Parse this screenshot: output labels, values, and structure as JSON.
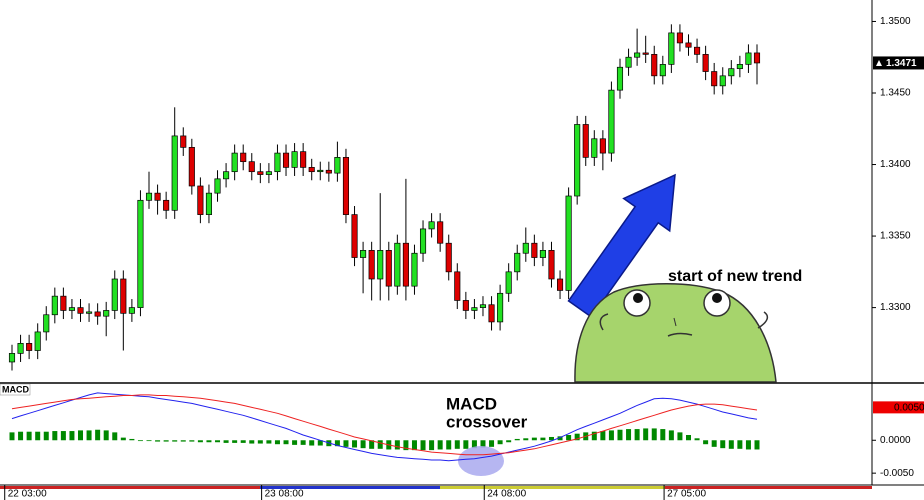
{
  "chart_data": [
    {
      "type": "candlestick",
      "open": [
        1.3262,
        1.3268,
        1.3275,
        1.327,
        1.3283,
        1.3295,
        1.3308,
        1.3298,
        1.33,
        1.3296,
        1.3297,
        1.3294,
        1.3298,
        1.332,
        1.3296,
        1.33,
        1.3375,
        1.338,
        1.3375,
        1.3368,
        1.342,
        1.3412,
        1.3385,
        1.3365,
        1.338,
        1.339,
        1.3395,
        1.3408,
        1.3402,
        1.3395,
        1.3393,
        1.3395,
        1.3408,
        1.3398,
        1.3409,
        1.3398,
        1.3395,
        1.3396,
        1.3394,
        1.3405,
        1.3365,
        1.3335,
        1.334,
        1.332,
        1.334,
        1.3315,
        1.3345,
        1.3315,
        1.3338,
        1.3355,
        1.336,
        1.3345,
        1.3325,
        1.3305,
        1.3298,
        1.33,
        1.3302,
        1.329,
        1.331,
        1.3325,
        1.3338,
        1.3345,
        1.3335,
        1.334,
        1.332,
        1.3312,
        1.3378,
        1.3428,
        1.3405,
        1.3418,
        1.3408,
        1.3452,
        1.3468,
        1.3475,
        1.3478,
        1.3477,
        1.3462,
        1.347,
        1.3492,
        1.3485,
        1.3482,
        1.3477,
        1.3465,
        1.3455,
        1.3462,
        1.3467,
        1.347,
        1.3478
      ],
      "high": [
        1.3274,
        1.3281,
        1.3281,
        1.3289,
        1.3301,
        1.3314,
        1.3314,
        1.3306,
        1.3306,
        1.3303,
        1.3303,
        1.3304,
        1.3326,
        1.3326,
        1.3306,
        1.3382,
        1.3395,
        1.3386,
        1.3381,
        1.344,
        1.3426,
        1.3418,
        1.3391,
        1.3386,
        1.3396,
        1.3401,
        1.3414,
        1.3414,
        1.3408,
        1.3401,
        1.3401,
        1.3414,
        1.3414,
        1.3415,
        1.3415,
        1.3404,
        1.3402,
        1.3402,
        1.3416,
        1.3411,
        1.3371,
        1.3346,
        1.3346,
        1.338,
        1.3346,
        1.3351,
        1.339,
        1.3344,
        1.3361,
        1.3366,
        1.3366,
        1.3351,
        1.3331,
        1.3311,
        1.3306,
        1.3308,
        1.3308,
        1.3316,
        1.3331,
        1.3344,
        1.3356,
        1.3351,
        1.3346,
        1.3346,
        1.3326,
        1.3384,
        1.3434,
        1.3434,
        1.3424,
        1.3424,
        1.3458,
        1.3474,
        1.3481,
        1.3495,
        1.349,
        1.3483,
        1.3476,
        1.3498,
        1.3498,
        1.3491,
        1.3488,
        1.3483,
        1.3471,
        1.3468,
        1.3473,
        1.3476,
        1.3484,
        1.3484
      ],
      "low": [
        1.3256,
        1.3262,
        1.3264,
        1.3264,
        1.3277,
        1.3289,
        1.3292,
        1.3292,
        1.329,
        1.329,
        1.3288,
        1.328,
        1.3292,
        1.327,
        1.329,
        1.3294,
        1.3369,
        1.3365,
        1.3362,
        1.3362,
        1.3406,
        1.3379,
        1.3359,
        1.3359,
        1.3374,
        1.3384,
        1.3389,
        1.3396,
        1.3389,
        1.3387,
        1.3387,
        1.3389,
        1.3392,
        1.3392,
        1.3392,
        1.3389,
        1.3389,
        1.3388,
        1.3388,
        1.3359,
        1.3329,
        1.331,
        1.3305,
        1.3305,
        1.3305,
        1.3309,
        1.3305,
        1.3309,
        1.3332,
        1.3349,
        1.3339,
        1.3319,
        1.3299,
        1.3292,
        1.3292,
        1.3294,
        1.3284,
        1.3284,
        1.3304,
        1.3319,
        1.3332,
        1.3329,
        1.3329,
        1.3314,
        1.3306,
        1.3306,
        1.3372,
        1.3399,
        1.3399,
        1.3396,
        1.3402,
        1.3446,
        1.3462,
        1.3469,
        1.3471,
        1.3456,
        1.3456,
        1.3464,
        1.3479,
        1.3476,
        1.3471,
        1.3459,
        1.3449,
        1.3449,
        1.3456,
        1.3461,
        1.3464,
        1.3456
      ],
      "close": [
        1.3268,
        1.3275,
        1.327,
        1.3283,
        1.3295,
        1.3308,
        1.3298,
        1.33,
        1.3296,
        1.3297,
        1.3294,
        1.3298,
        1.332,
        1.3296,
        1.33,
        1.3375,
        1.338,
        1.3375,
        1.3368,
        1.342,
        1.3412,
        1.3385,
        1.3365,
        1.338,
        1.339,
        1.3395,
        1.3408,
        1.3402,
        1.3395,
        1.3393,
        1.3395,
        1.3408,
        1.3398,
        1.3409,
        1.3398,
        1.3395,
        1.3396,
        1.3394,
        1.3405,
        1.3365,
        1.3335,
        1.334,
        1.332,
        1.334,
        1.3315,
        1.3345,
        1.3315,
        1.3338,
        1.3355,
        1.336,
        1.3345,
        1.3325,
        1.3305,
        1.3298,
        1.33,
        1.3302,
        1.329,
        1.331,
        1.3325,
        1.3338,
        1.3345,
        1.3335,
        1.334,
        1.332,
        1.3312,
        1.3378,
        1.3428,
        1.3405,
        1.3418,
        1.3408,
        1.3452,
        1.3468,
        1.3475,
        1.3478,
        1.3477,
        1.3462,
        1.347,
        1.3492,
        1.3485,
        1.3482,
        1.3477,
        1.3465,
        1.3455,
        1.3462,
        1.3467,
        1.347,
        1.3478,
        1.3471
      ],
      "up_color": "#22e022",
      "down_color": "#dd0000",
      "ylim": [
        1.3248,
        1.3515
      ],
      "yticks": [
        {
          "value": 1.33,
          "label": "1.3300"
        },
        {
          "value": 1.335,
          "label": "1.3350"
        },
        {
          "value": 1.34,
          "label": "1.3400"
        },
        {
          "value": 1.345,
          "label": "1.3450"
        },
        {
          "value": 1.35,
          "label": "1.3500"
        }
      ],
      "xticks": [
        {
          "value": 0,
          "label": "22 03:00"
        },
        {
          "value": 30,
          "label": "23 08:00"
        },
        {
          "value": 56,
          "label": "24 08:00"
        },
        {
          "value": 77,
          "label": "27 05:00"
        }
      ],
      "annotation": "start of new trend"
    },
    {
      "type": "macd",
      "title": "MACD",
      "histogram": [
        0.0012,
        0.0013,
        0.0013,
        0.0013,
        0.0013,
        0.0014,
        0.0014,
        0.0014,
        0.0015,
        0.0015,
        0.0016,
        0.0015,
        0.0012,
        0.0004,
        0.0002,
        -0.0001,
        -0.0001,
        -0.0002,
        -0.0002,
        -0.0002,
        -0.0002,
        -0.0002,
        -0.0003,
        -0.0003,
        -0.0003,
        -0.0004,
        -0.0004,
        -0.0004,
        -0.0005,
        -0.0005,
        -0.0005,
        -0.0006,
        -0.0006,
        -0.0007,
        -0.0007,
        -0.0008,
        -0.0008,
        -0.0009,
        -0.0009,
        -0.001,
        -0.0011,
        -0.0012,
        -0.0013,
        -0.0013,
        -0.0014,
        -0.0014,
        -0.0015,
        -0.0015,
        -0.0015,
        -0.0015,
        -0.0014,
        -0.0014,
        -0.0013,
        -0.0013,
        -0.0012,
        -0.0011,
        -0.001,
        -0.0006,
        -0.0003,
        0.0002,
        0.0003,
        0.0004,
        0.0004,
        0.0005,
        0.0006,
        0.0008,
        0.001,
        0.0012,
        0.0013,
        0.0014,
        0.0015,
        0.0016,
        0.0017,
        0.0017,
        0.0018,
        0.0018,
        0.0017,
        0.0015,
        0.0012,
        0.0008,
        0.0003,
        -0.0006,
        -0.001,
        -0.0012,
        -0.0013,
        -0.0013,
        -0.0014,
        -0.0014
      ],
      "histogram_color": "#008800",
      "lines": [
        {
          "color": "#2222ee",
          "values": [
            0.0033,
            0.0037,
            0.0041,
            0.0045,
            0.0049,
            0.0053,
            0.0057,
            0.0061,
            0.0065,
            0.0069,
            0.0072,
            0.0071,
            0.007,
            0.0069,
            0.0068,
            0.0067,
            0.0066,
            0.0064,
            0.0062,
            0.006,
            0.0058,
            0.0056,
            0.0053,
            0.005,
            0.0047,
            0.0044,
            0.0041,
            0.0038,
            0.0034,
            0.003,
            0.0026,
            0.0022,
            0.0018,
            0.0013,
            0.0008,
            0.0004,
            0.0,
            -0.0004,
            -0.0008,
            -0.0011,
            -0.0014,
            -0.0017,
            -0.002,
            -0.0022,
            -0.0024,
            -0.0026,
            -0.0027,
            -0.0028,
            -0.0029,
            -0.003,
            -0.003,
            -0.0031,
            -0.003,
            -0.0029,
            -0.0028,
            -0.0026,
            -0.0024,
            -0.0021,
            -0.0018,
            -0.0015,
            -0.0012,
            -0.0009,
            -0.0005,
            -0.0001,
            0.0004,
            0.001,
            0.0016,
            0.0021,
            0.0026,
            0.0031,
            0.0036,
            0.0041,
            0.0047,
            0.0053,
            0.0058,
            0.0063,
            0.0064,
            0.0063,
            0.0061,
            0.0058,
            0.0055,
            0.0051,
            0.0047,
            0.0043,
            0.004,
            0.0037,
            0.0034,
            0.0032
          ]
        },
        {
          "color": "#ee2222",
          "values": [
            0.0048,
            0.005,
            0.0052,
            0.0054,
            0.0056,
            0.0058,
            0.006,
            0.0062,
            0.0063,
            0.0064,
            0.0065,
            0.0066,
            0.0067,
            0.0068,
            0.0068,
            0.0069,
            0.0069,
            0.0068,
            0.0068,
            0.0067,
            0.0066,
            0.0065,
            0.0064,
            0.0062,
            0.006,
            0.0058,
            0.0056,
            0.0053,
            0.005,
            0.0047,
            0.0044,
            0.0041,
            0.0037,
            0.0033,
            0.0029,
            0.0025,
            0.0021,
            0.0017,
            0.0013,
            0.0009,
            0.0005,
            0.0002,
            -0.0001,
            -0.0004,
            -0.0007,
            -0.001,
            -0.0012,
            -0.0014,
            -0.0016,
            -0.0018,
            -0.0019,
            -0.002,
            -0.0021,
            -0.0022,
            -0.0022,
            -0.0022,
            -0.0021,
            -0.002,
            -0.0019,
            -0.0017,
            -0.0015,
            -0.0013,
            -0.001,
            -0.0007,
            -0.0004,
            -0.0001,
            0.0002,
            0.0006,
            0.001,
            0.0014,
            0.0018,
            0.0022,
            0.0026,
            0.003,
            0.0034,
            0.0038,
            0.0042,
            0.0046,
            0.0049,
            0.0052,
            0.0054,
            0.0055,
            0.0055,
            0.0054,
            0.0052,
            0.005,
            0.0048,
            0.0046
          ]
        }
      ],
      "ylim": [
        -0.0068,
        0.0084
      ],
      "yticks": [
        {
          "value": -0.005,
          "label": "-0.0050"
        },
        {
          "value": 0,
          "label": "0.0000"
        }
      ],
      "marker_label": {
        "value": 0.005,
        "label": "0.0050",
        "color": "#ee0000"
      },
      "annotation": [
        "MACD",
        "crossover"
      ]
    }
  ]
}
